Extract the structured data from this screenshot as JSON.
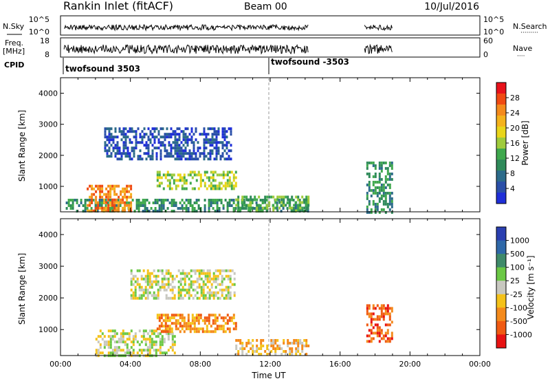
{
  "header": {
    "title": "Rankin Inlet (fitACF)",
    "beam": "Beam 00",
    "date": "10/Jul/2016"
  },
  "nsky_panel": {
    "left_label": "N.Sky",
    "left_ticks": [
      "10^5",
      "10^0"
    ],
    "right_ticks": [
      "10^5",
      "10^0"
    ],
    "right_label": "N.Search",
    "right_dots": "·········"
  },
  "freq_panel": {
    "left_label_1": "Freq.",
    "left_label_2": "[MHz]",
    "left_ticks": [
      "18",
      "8"
    ],
    "right_ticks": [
      "60",
      "0"
    ],
    "right_label": "Nave",
    "right_dots": "····"
  },
  "cpid_panel": {
    "label": "CPID",
    "segments": [
      "twofsound 3503",
      "twofsound -3503"
    ]
  },
  "power_colorbar": {
    "label": "Power [dB]",
    "ticks": [
      "28",
      "24",
      "20",
      "16",
      "12",
      "8",
      "4"
    ],
    "colors": [
      "#e8121b",
      "#f04a12",
      "#f48a1c",
      "#f4b21c",
      "#e9d51a",
      "#9fcb3c",
      "#3fa84d",
      "#2f8a5a",
      "#2c6b8a",
      "#2a4fa8",
      "#1f2fd8"
    ]
  },
  "velocity_colorbar": {
    "label": "Velocity [m s⁻¹]",
    "ticks": [
      "1000",
      "500",
      "100",
      "25",
      "-25",
      "-100",
      "-500",
      "-1000"
    ],
    "colors": [
      "#2a3fb0",
      "#2f68a8",
      "#3f8a6a",
      "#6bc845",
      "#c8c8c0",
      "#f4c21a",
      "#f48a1c",
      "#f05a12",
      "#e81212"
    ]
  },
  "chart_data": [
    {
      "type": "heatmap",
      "name": "power",
      "ylabel": "Slant Range [km]",
      "yticks": [
        "1000",
        "2000",
        "3000",
        "4000"
      ],
      "xlim": [
        "00:00",
        "24:00"
      ],
      "ylim": [
        180,
        4500
      ],
      "regions": [
        {
          "t0": 0.3,
          "t1": 14.2,
          "r0": 180,
          "r1": 600,
          "level": 3
        },
        {
          "t0": 1.5,
          "t1": 4.0,
          "r0": 180,
          "r1": 1050,
          "level": 8
        },
        {
          "t0": 5.5,
          "t1": 10.0,
          "r0": 900,
          "r1": 1500,
          "level": 5
        },
        {
          "t0": 2.5,
          "t1": 9.8,
          "r0": 1900,
          "r1": 2900,
          "level": 1
        },
        {
          "t0": 10.0,
          "t1": 14.2,
          "r0": 200,
          "r1": 700,
          "level": 4
        },
        {
          "t0": 17.5,
          "t1": 19.0,
          "r0": 200,
          "r1": 1800,
          "level": 3
        }
      ]
    },
    {
      "type": "heatmap",
      "name": "velocity",
      "ylabel": "Slant Range [km]",
      "yticks": [
        "1000",
        "2000",
        "3000",
        "4000"
      ],
      "xticks": [
        "00:00",
        "04:00",
        "08:00",
        "12:00",
        "16:00",
        "20:00",
        "00:00"
      ],
      "xlabel": "Time UT",
      "xlim": [
        "00:00",
        "24:00"
      ],
      "ylim": [
        180,
        4500
      ],
      "regions": [
        {
          "t0": 2.0,
          "t1": 6.5,
          "r0": 180,
          "r1": 1000,
          "level": 4
        },
        {
          "t0": 5.5,
          "t1": 10.0,
          "r0": 900,
          "r1": 1500,
          "level": 6
        },
        {
          "t0": 4.0,
          "t1": 10.0,
          "r0": 2000,
          "r1": 2900,
          "level": 4
        },
        {
          "t0": 10.0,
          "t1": 14.2,
          "r0": 200,
          "r1": 700,
          "level": 5
        },
        {
          "t0": 17.5,
          "t1": 19.0,
          "r0": 600,
          "r1": 1800,
          "level": 7
        }
      ]
    }
  ]
}
